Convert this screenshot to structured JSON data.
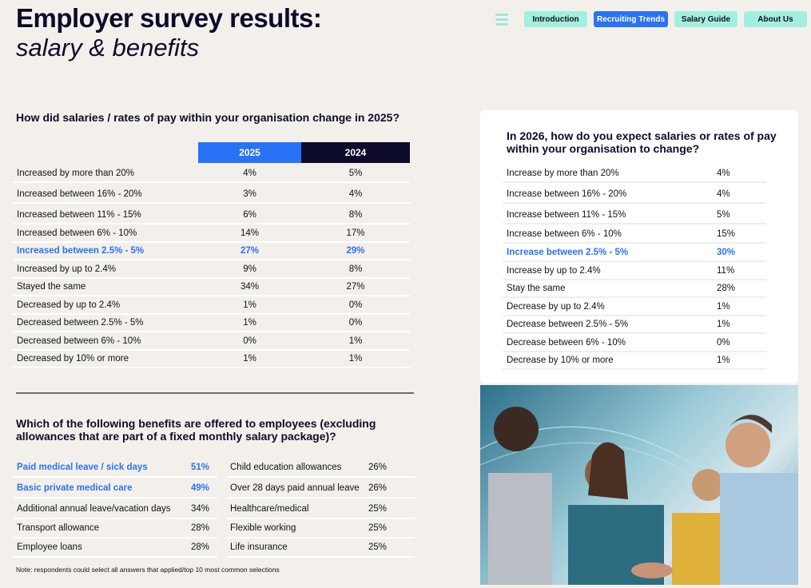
{
  "header": {
    "title": "Employer survey results:",
    "subtitle": "salary & benefits"
  },
  "nav": {
    "items": [
      "Introduction",
      "Recruiting Trends",
      "Salary Guide",
      "About Us"
    ],
    "active": "Recruiting Trends"
  },
  "colors": {
    "accent": "#2a72f5",
    "dark": "#0d0b2a",
    "mint": "#a2efe2"
  },
  "salary_change": {
    "question": "How did salaries / rates of pay within your organisation change in 2025?",
    "columns": [
      "2025",
      "2024"
    ],
    "rows": [
      {
        "label": "Increased by more than 20%",
        "v2025": "4%",
        "v2024": "5%"
      },
      {
        "label": "Increased between 16% - 20%",
        "v2025": "3%",
        "v2024": "4%"
      },
      {
        "label": "Increased between 11% - 15%",
        "v2025": "6%",
        "v2024": "8%"
      },
      {
        "label": "Increased between 6% - 10%",
        "v2025": "14%",
        "v2024": "17%"
      },
      {
        "label": "Increased between 2.5% - 5%",
        "v2025": "27%",
        "v2024": "29%"
      },
      {
        "label": "Increased by up to 2.4%",
        "v2025": "9%",
        "v2024": "8%"
      },
      {
        "label": "Stayed the same",
        "v2025": "34%",
        "v2024": "27%"
      },
      {
        "label": "Decreased by up to 2.4%",
        "v2025": "1%",
        "v2024": "0%"
      },
      {
        "label": "Decreased between 2.5% - 5%",
        "v2025": "1%",
        "v2024": "0%"
      },
      {
        "label": "Decreased between 6% - 10%",
        "v2025": "0%",
        "v2024": "1%"
      },
      {
        "label": "Decreased by 10% or more",
        "v2025": "1%",
        "v2024": "1%"
      }
    ]
  },
  "benefits": {
    "question": "Which of the following benefits are offered to employees (excluding allowances that are part of a fixed monthly salary package)?",
    "left": [
      {
        "label": "Paid medical leave / sick days",
        "value": "51%"
      },
      {
        "label": "Basic private medical care",
        "value": "49%"
      },
      {
        "label": "Additional annual leave/vacation days",
        "value": "34%"
      },
      {
        "label": "Transport allowance",
        "value": "28%"
      },
      {
        "label": "Employee loans",
        "value": "28%"
      }
    ],
    "right": [
      {
        "label": "Child education allowances",
        "value": "26%"
      },
      {
        "label": "Over 28 days paid annual leave",
        "value": "26%"
      },
      {
        "label": "Healthcare/medical",
        "value": "25%"
      },
      {
        "label": "Flexible working",
        "value": "25%"
      },
      {
        "label": "Life insurance",
        "value": "25%"
      }
    ],
    "note": "Note: respondents could select all answers that applied/top 10 most common selections"
  },
  "expectation": {
    "question": "In 2026, how do you expect salaries or rates of pay within your organisation to change?",
    "rows": [
      {
        "label": "Increase by more than 20%",
        "value": "4%"
      },
      {
        "label": "Increase between 16% - 20%",
        "value": "4%"
      },
      {
        "label": "Increase between 11% - 15%",
        "value": "5%"
      },
      {
        "label": "Increase between 6% - 10%",
        "value": "15%"
      },
      {
        "label": "Increase between 2.5% - 5%",
        "value": "30%"
      },
      {
        "label": "Increase by up to 2.4%",
        "value": "11%"
      },
      {
        "label": "Stay the same",
        "value": "28%"
      },
      {
        "label": "Decrease by up to 2.4%",
        "value": "1%"
      },
      {
        "label": "Decrease between 2.5% - 5%",
        "value": "1%"
      },
      {
        "label": "Decrease between 6% - 10%",
        "value": "0%"
      },
      {
        "label": "Decrease by 10% or more",
        "value": "1%"
      }
    ]
  }
}
